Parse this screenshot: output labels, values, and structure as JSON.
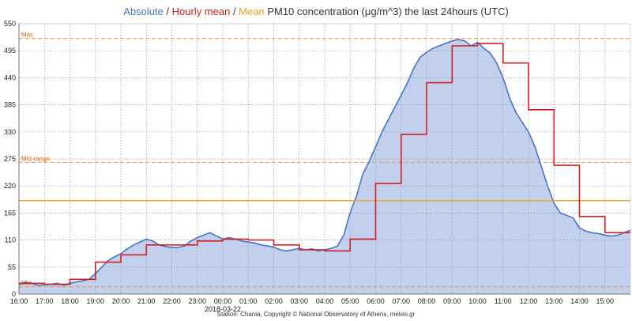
{
  "chart_data": {
    "type": "line",
    "title": {
      "absolute": "Absolute",
      "sep1": " / ",
      "hourly": "Hourly mean",
      "sep2": " / ",
      "mean": "Mean",
      "rest": " PM10 concentration (μg/m^3) the last 24hours (UTC)"
    },
    "date_label": "2018-03-22",
    "footer": "Station: Chania, Copyright © National Observatory of Athens, meteo.gr",
    "ylim": [
      0,
      550
    ],
    "yticks": [
      0,
      55,
      110,
      165,
      220,
      275,
      330,
      385,
      440,
      495,
      550
    ],
    "x_range": [
      16.0,
      40.0
    ],
    "xticks": [
      {
        "h": 16,
        "label": "16:00"
      },
      {
        "h": 17,
        "label": "17:00"
      },
      {
        "h": 18,
        "label": "18:00"
      },
      {
        "h": 19,
        "label": "19:00"
      },
      {
        "h": 20,
        "label": "20:00"
      },
      {
        "h": 21,
        "label": "21:00"
      },
      {
        "h": 22,
        "label": "22:00"
      },
      {
        "h": 23,
        "label": "23:00"
      },
      {
        "h": 24,
        "label": "00:00"
      },
      {
        "h": 25,
        "label": "01:00"
      },
      {
        "h": 26,
        "label": "02:00"
      },
      {
        "h": 27,
        "label": "03:00"
      },
      {
        "h": 28,
        "label": "04:00"
      },
      {
        "h": 29,
        "label": "05:00"
      },
      {
        "h": 30,
        "label": "06:00"
      },
      {
        "h": 31,
        "label": "07:00"
      },
      {
        "h": 32,
        "label": "08:00"
      },
      {
        "h": 33,
        "label": "09:00"
      },
      {
        "h": 34,
        "label": "10:00"
      },
      {
        "h": 35,
        "label": "11:00"
      },
      {
        "h": 36,
        "label": "12:00"
      },
      {
        "h": 37,
        "label": "13:00"
      },
      {
        "h": 38,
        "label": "14:00"
      },
      {
        "h": 39,
        "label": "15:00"
      }
    ],
    "reference_lines": {
      "max": {
        "value": 520,
        "label": "Max"
      },
      "mid": {
        "value": 268,
        "label": "Mid-range"
      },
      "min": {
        "value": 15,
        "label": "Min"
      },
      "mean": {
        "value": 190
      }
    },
    "absolute": {
      "name": "Absolute",
      "x": [
        16.0,
        16.25,
        16.5,
        16.75,
        17.0,
        17.25,
        17.5,
        17.75,
        18.0,
        18.25,
        18.5,
        18.75,
        19.0,
        19.25,
        19.5,
        19.75,
        20.0,
        20.25,
        20.5,
        20.75,
        21.0,
        21.25,
        21.5,
        21.75,
        22.0,
        22.25,
        22.5,
        22.75,
        23.0,
        23.25,
        23.5,
        23.75,
        24.0,
        24.25,
        24.5,
        24.75,
        25.0,
        25.25,
        25.5,
        25.75,
        26.0,
        26.25,
        26.5,
        26.75,
        27.0,
        27.25,
        27.5,
        27.75,
        28.0,
        28.25,
        28.5,
        28.75,
        29.0,
        29.25,
        29.5,
        29.75,
        30.0,
        30.25,
        30.5,
        30.75,
        31.0,
        31.25,
        31.5,
        31.75,
        32.0,
        32.25,
        32.5,
        32.75,
        33.0,
        33.25,
        33.5,
        33.75,
        34.0,
        34.25,
        34.5,
        34.75,
        35.0,
        35.25,
        35.5,
        35.75,
        36.0,
        36.25,
        36.5,
        36.75,
        37.0,
        37.25,
        37.5,
        37.75,
        38.0,
        38.25,
        38.5,
        38.75,
        39.0,
        39.25,
        39.5,
        39.75,
        40.0
      ],
      "y": [
        20,
        24,
        22,
        18,
        19,
        20,
        22,
        18,
        22,
        25,
        27,
        30,
        42,
        55,
        68,
        76,
        82,
        92,
        100,
        106,
        112,
        108,
        100,
        97,
        95,
        95,
        98,
        108,
        115,
        120,
        125,
        118,
        112,
        115,
        112,
        108,
        106,
        104,
        100,
        98,
        96,
        90,
        88,
        90,
        93,
        90,
        92,
        88,
        90,
        93,
        98,
        120,
        165,
        200,
        245,
        270,
        300,
        330,
        355,
        380,
        405,
        430,
        460,
        482,
        492,
        500,
        505,
        510,
        515,
        518,
        515,
        505,
        512,
        500,
        490,
        470,
        440,
        400,
        370,
        350,
        330,
        300,
        260,
        220,
        185,
        165,
        160,
        155,
        135,
        128,
        125,
        123,
        120,
        118,
        120,
        125,
        130
      ]
    },
    "hourly_mean": {
      "name": "Hourly mean",
      "values": [
        22,
        20,
        30,
        65,
        80,
        100,
        100,
        108,
        112,
        110,
        100,
        90,
        88,
        112,
        225,
        325,
        430,
        505,
        510,
        470,
        375,
        262,
        158,
        125
      ]
    }
  }
}
